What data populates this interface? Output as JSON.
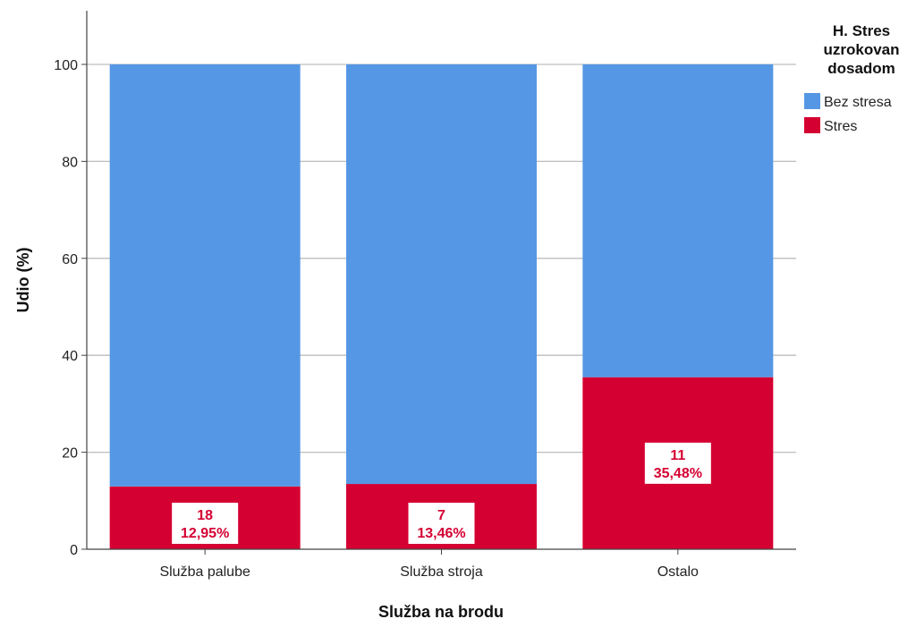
{
  "chart_data": {
    "type": "bar",
    "stacked": true,
    "categories": [
      "Služba palube",
      "Služba stroja",
      "Ostalo"
    ],
    "series": [
      {
        "name": "Stres",
        "color": "#d50032",
        "values": [
          12.95,
          13.46,
          35.48
        ],
        "counts": [
          "18",
          "7",
          "11"
        ],
        "percent_labels": [
          "12,95%",
          "13,46%",
          "35,48%"
        ]
      },
      {
        "name": "Bez stresa",
        "color": "#5597e4",
        "values": [
          87.05,
          86.54,
          64.52
        ]
      }
    ],
    "xlabel": "Služba na brodu",
    "ylabel": "Udio (%)",
    "ylim": [
      0,
      100
    ],
    "yticks": [
      "0",
      "20",
      "40",
      "60",
      "80",
      "100"
    ],
    "grid": "horizontal",
    "legend": {
      "title_lines": [
        "H. Stres",
        "uzrokovan",
        "dosadom"
      ],
      "placement": "right-top",
      "order": [
        "Bez stresa",
        "Stres"
      ]
    }
  }
}
